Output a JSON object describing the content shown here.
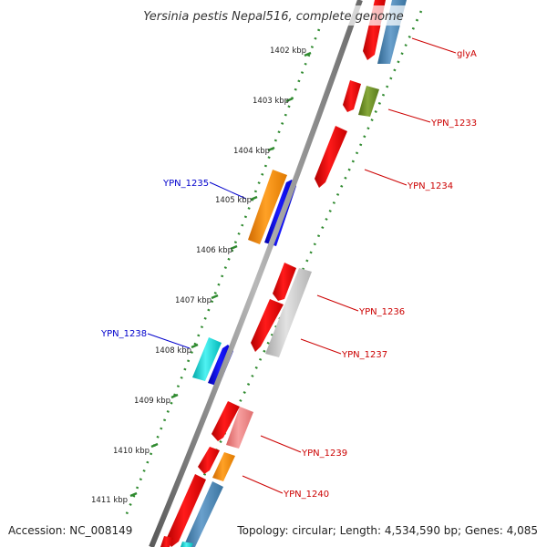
{
  "title": "Yersinia pestis Nepal516, complete genome",
  "footer": {
    "accession": "Accession: NC_008149",
    "topology": "Topology: circular; Length: 4,534,590 bp; Genes: 4,085"
  },
  "colors": {
    "backbone": "#8a8a8a",
    "tick": "#2f8a2f",
    "forward_label": "#cc0000",
    "reverse_label": "#0000cc"
  },
  "kbp_ticks": [
    "1402 kbp",
    "1403 kbp",
    "1404 kbp",
    "1405 kbp",
    "1406 kbp",
    "1407 kbp",
    "1408 kbp",
    "1409 kbp",
    "1410 kbp",
    "1411 kbp"
  ],
  "gene_labels": [
    {
      "text": "glyA",
      "color": "#cc0000"
    },
    {
      "text": "YPN_1233",
      "color": "#cc0000"
    },
    {
      "text": "YPN_1234",
      "color": "#cc0000"
    },
    {
      "text": "YPN_1235",
      "color": "#0000cc"
    },
    {
      "text": "YPN_1236",
      "color": "#cc0000"
    },
    {
      "text": "YPN_1237",
      "color": "#cc0000"
    },
    {
      "text": "YPN_1238",
      "color": "#0000cc"
    },
    {
      "text": "YPN_1239",
      "color": "#cc0000"
    },
    {
      "text": "YPN_1240",
      "color": "#cc0000"
    }
  ]
}
